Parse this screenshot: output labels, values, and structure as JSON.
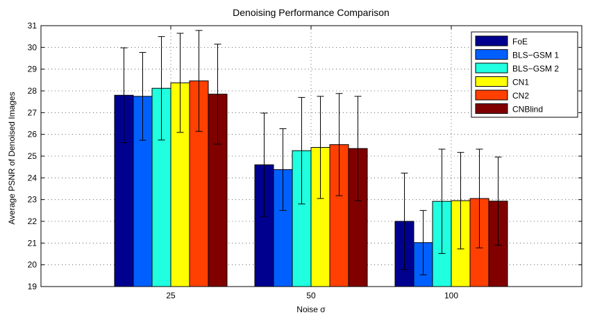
{
  "chart_data": {
    "type": "bar",
    "title": "Denoising Performance Comparison",
    "xlabel": "Noise σ",
    "ylabel": "Average PSNR of Denoised Images",
    "categories": [
      "25",
      "50",
      "100"
    ],
    "ylim": [
      19,
      31
    ],
    "yticks": [
      "19",
      "20",
      "21",
      "22",
      "23",
      "24",
      "25",
      "26",
      "27",
      "28",
      "29",
      "30",
      "31"
    ],
    "grid": "dotted",
    "legend_position": "top-right",
    "error_bars": true,
    "series": [
      {
        "name": "FoE",
        "color": "#00008f",
        "values": [
          27.8,
          24.6,
          22.0
        ],
        "errors": [
          2.18,
          2.38,
          2.22
        ]
      },
      {
        "name": "BLS−GSM 1",
        "color": "#0060ff",
        "values": [
          27.75,
          24.38,
          21.02
        ],
        "errors": [
          2.02,
          1.88,
          1.48
        ]
      },
      {
        "name": "BLS−GSM 2",
        "color": "#20ffdf",
        "values": [
          28.12,
          25.25,
          22.92
        ],
        "errors": [
          2.38,
          2.45,
          2.4
        ]
      },
      {
        "name": "CN1",
        "color": "#ffff00",
        "values": [
          28.37,
          25.4,
          22.95
        ],
        "errors": [
          2.28,
          2.35,
          2.22
        ]
      },
      {
        "name": "CN2",
        "color": "#ff4000",
        "values": [
          28.46,
          25.53,
          23.05
        ],
        "errors": [
          2.32,
          2.35,
          2.27
        ]
      },
      {
        "name": "CNBlind",
        "color": "#800000",
        "values": [
          27.85,
          25.35,
          22.93
        ],
        "errors": [
          2.3,
          2.4,
          2.03
        ]
      }
    ]
  }
}
